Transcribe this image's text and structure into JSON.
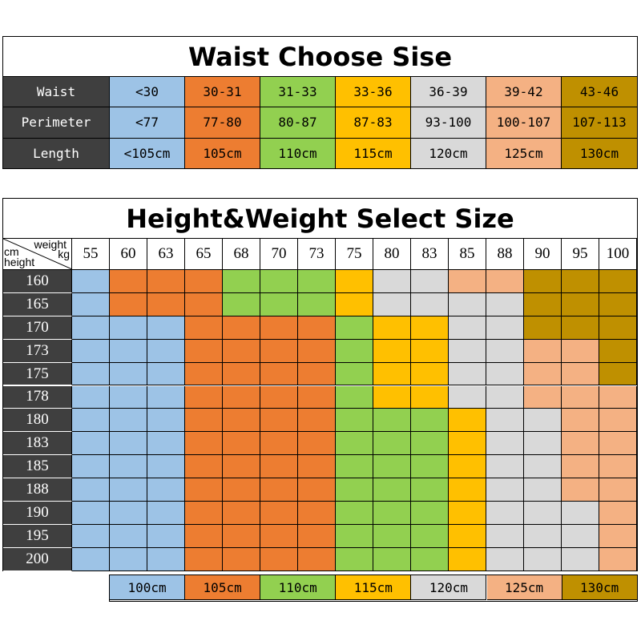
{
  "waist_table": {
    "title": "Waist Choose Sise",
    "rows": [
      {
        "label": "Waist",
        "values": [
          "<30",
          "30-31",
          "31-33",
          "33-36",
          "36-39",
          "39-42",
          "43-46"
        ]
      },
      {
        "label": "Perimeter",
        "values": [
          "<77",
          "77-80",
          "80-87",
          "87-83",
          "93-100",
          "100-107",
          "107-113"
        ]
      },
      {
        "label": "Length",
        "values": [
          "<105cm",
          "105cm",
          "110cm",
          "115cm",
          "120cm",
          "125cm",
          "130cm"
        ]
      }
    ]
  },
  "size_colors": [
    "#9dc3e6",
    "#ed7d31",
    "#92d050",
    "#ffc000",
    "#d9d9d9",
    "#f4b183",
    "#bf9000"
  ],
  "hw_table": {
    "title": "Height&Weight Select Size",
    "corner": {
      "top": "weight",
      "top_unit": "kg",
      "left_unit": "cm",
      "bottom": "height"
    },
    "weights": [
      "55",
      "60",
      "63",
      "65",
      "68",
      "70",
      "73",
      "75",
      "80",
      "83",
      "85",
      "88",
      "90",
      "95",
      "100"
    ],
    "heights": [
      "160",
      "165",
      "170",
      "173",
      "175",
      "178",
      "180",
      "183",
      "185",
      "188",
      "190",
      "195",
      "200"
    ],
    "grid": [
      [
        0,
        1,
        1,
        1,
        2,
        2,
        2,
        3,
        4,
        4,
        5,
        5,
        6,
        6,
        6
      ],
      [
        0,
        1,
        1,
        1,
        2,
        2,
        2,
        3,
        4,
        4,
        4,
        4,
        6,
        6,
        6
      ],
      [
        0,
        0,
        0,
        1,
        1,
        1,
        1,
        2,
        3,
        3,
        4,
        4,
        6,
        6,
        6
      ],
      [
        0,
        0,
        0,
        1,
        1,
        1,
        1,
        2,
        3,
        3,
        4,
        4,
        5,
        5,
        6
      ],
      [
        0,
        0,
        0,
        1,
        1,
        1,
        1,
        2,
        3,
        3,
        4,
        4,
        5,
        5,
        6
      ],
      [
        0,
        0,
        0,
        1,
        1,
        1,
        1,
        2,
        3,
        3,
        4,
        4,
        5,
        5,
        5
      ],
      [
        0,
        0,
        0,
        1,
        1,
        1,
        1,
        2,
        2,
        2,
        3,
        4,
        4,
        5,
        5
      ],
      [
        0,
        0,
        0,
        1,
        1,
        1,
        1,
        2,
        2,
        2,
        3,
        4,
        4,
        5,
        5
      ],
      [
        0,
        0,
        0,
        1,
        1,
        1,
        1,
        2,
        2,
        2,
        3,
        4,
        4,
        5,
        5
      ],
      [
        0,
        0,
        0,
        1,
        1,
        1,
        1,
        2,
        2,
        2,
        3,
        4,
        4,
        5,
        5
      ],
      [
        0,
        0,
        0,
        1,
        1,
        1,
        1,
        2,
        2,
        2,
        3,
        4,
        4,
        4,
        5
      ],
      [
        0,
        0,
        0,
        1,
        1,
        1,
        1,
        2,
        2,
        2,
        3,
        4,
        4,
        4,
        5
      ],
      [
        0,
        0,
        0,
        1,
        1,
        1,
        1,
        2,
        2,
        2,
        3,
        4,
        4,
        4,
        5
      ]
    ]
  },
  "legend": [
    "100cm",
    "105cm",
    "110cm",
    "115cm",
    "120cm",
    "125cm",
    "130cm"
  ]
}
